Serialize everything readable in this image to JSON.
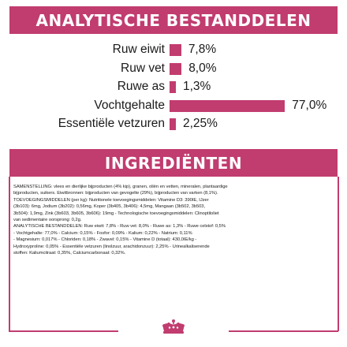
{
  "analytical": {
    "title": "ANALYTISCHE BESTANDDELEN",
    "rows": [
      {
        "label": "Ruw eiwit",
        "value": "7,8%",
        "percent": 7.8
      },
      {
        "label": "Ruw vet",
        "value": "8,0%",
        "percent": 8.0
      },
      {
        "label": "Ruwe as",
        "value": "1,3%",
        "percent": 1.3
      },
      {
        "label": "Vochtgehalte",
        "value": "77,0%",
        "percent": 77.0
      },
      {
        "label": "Essentiële vetzuren",
        "value": "2,25%",
        "percent": 2.25
      }
    ]
  },
  "ingredients": {
    "title": "INGREDIËNTEN",
    "lines": [
      "SAMENSTELLING: vlees en dierlijke bijproducten (4% kip), granen, oliën en vetten, mineralen, plantaardige",
      "bijproducten, suikers. Eiwitbronnen: bijproducten van gevogelte (29%), bijproducten van varken (8,1%).",
      "TOEVOEGINGSMIDDELEN (per kg): Nutritionele toevoegingsmiddelen: Vitamine D3: 390IE, IJzer",
      "(3b103): 6mg, Jodium (3b202): 0,56mg, Koper (3b405, 3b406): 4,5mg, Mangaan (3b502, 3b503,",
      "3b504): 1,9mg, Zink (3b603, 3b605, 3b606): 19mg - Technologische toevoegingsmiddelen: Clinoptiloliet",
      "van sedimentaire oorsprong: 0,2g.",
      "ANALYTISCHE BESTANDDELEN: Ruw eiwit: 7,8% - Ruw vet: 8,0% - Ruwe as: 1,3% - Ruwe celstof: 0,5%",
      "- Vochtgehalte: 77,0% - Calcium: 0,15% - Fosfor: 0,09% - Kalium: 0,22% - Natrium: 0,11%",
      "- Magnesium: 0,017% - Chloriden: 0,18% - Zwavel: 0,15% - Vitamine D (totaal): 430,0IE/kg -",
      "Hydroxyproline: 0,05% - Essentiële vetzuren (linolzuur, arachidonzuur): 2,25% - Urinealkaliserende",
      "stoffen: Kaliumcitraat: 0,35%, Calciumcarbonaat: 0,32%."
    ]
  },
  "colors": {
    "accent": "#c13c6f",
    "text": "#1a1a1a"
  },
  "brand": {
    "logo_icon": "crown-logo-icon"
  }
}
